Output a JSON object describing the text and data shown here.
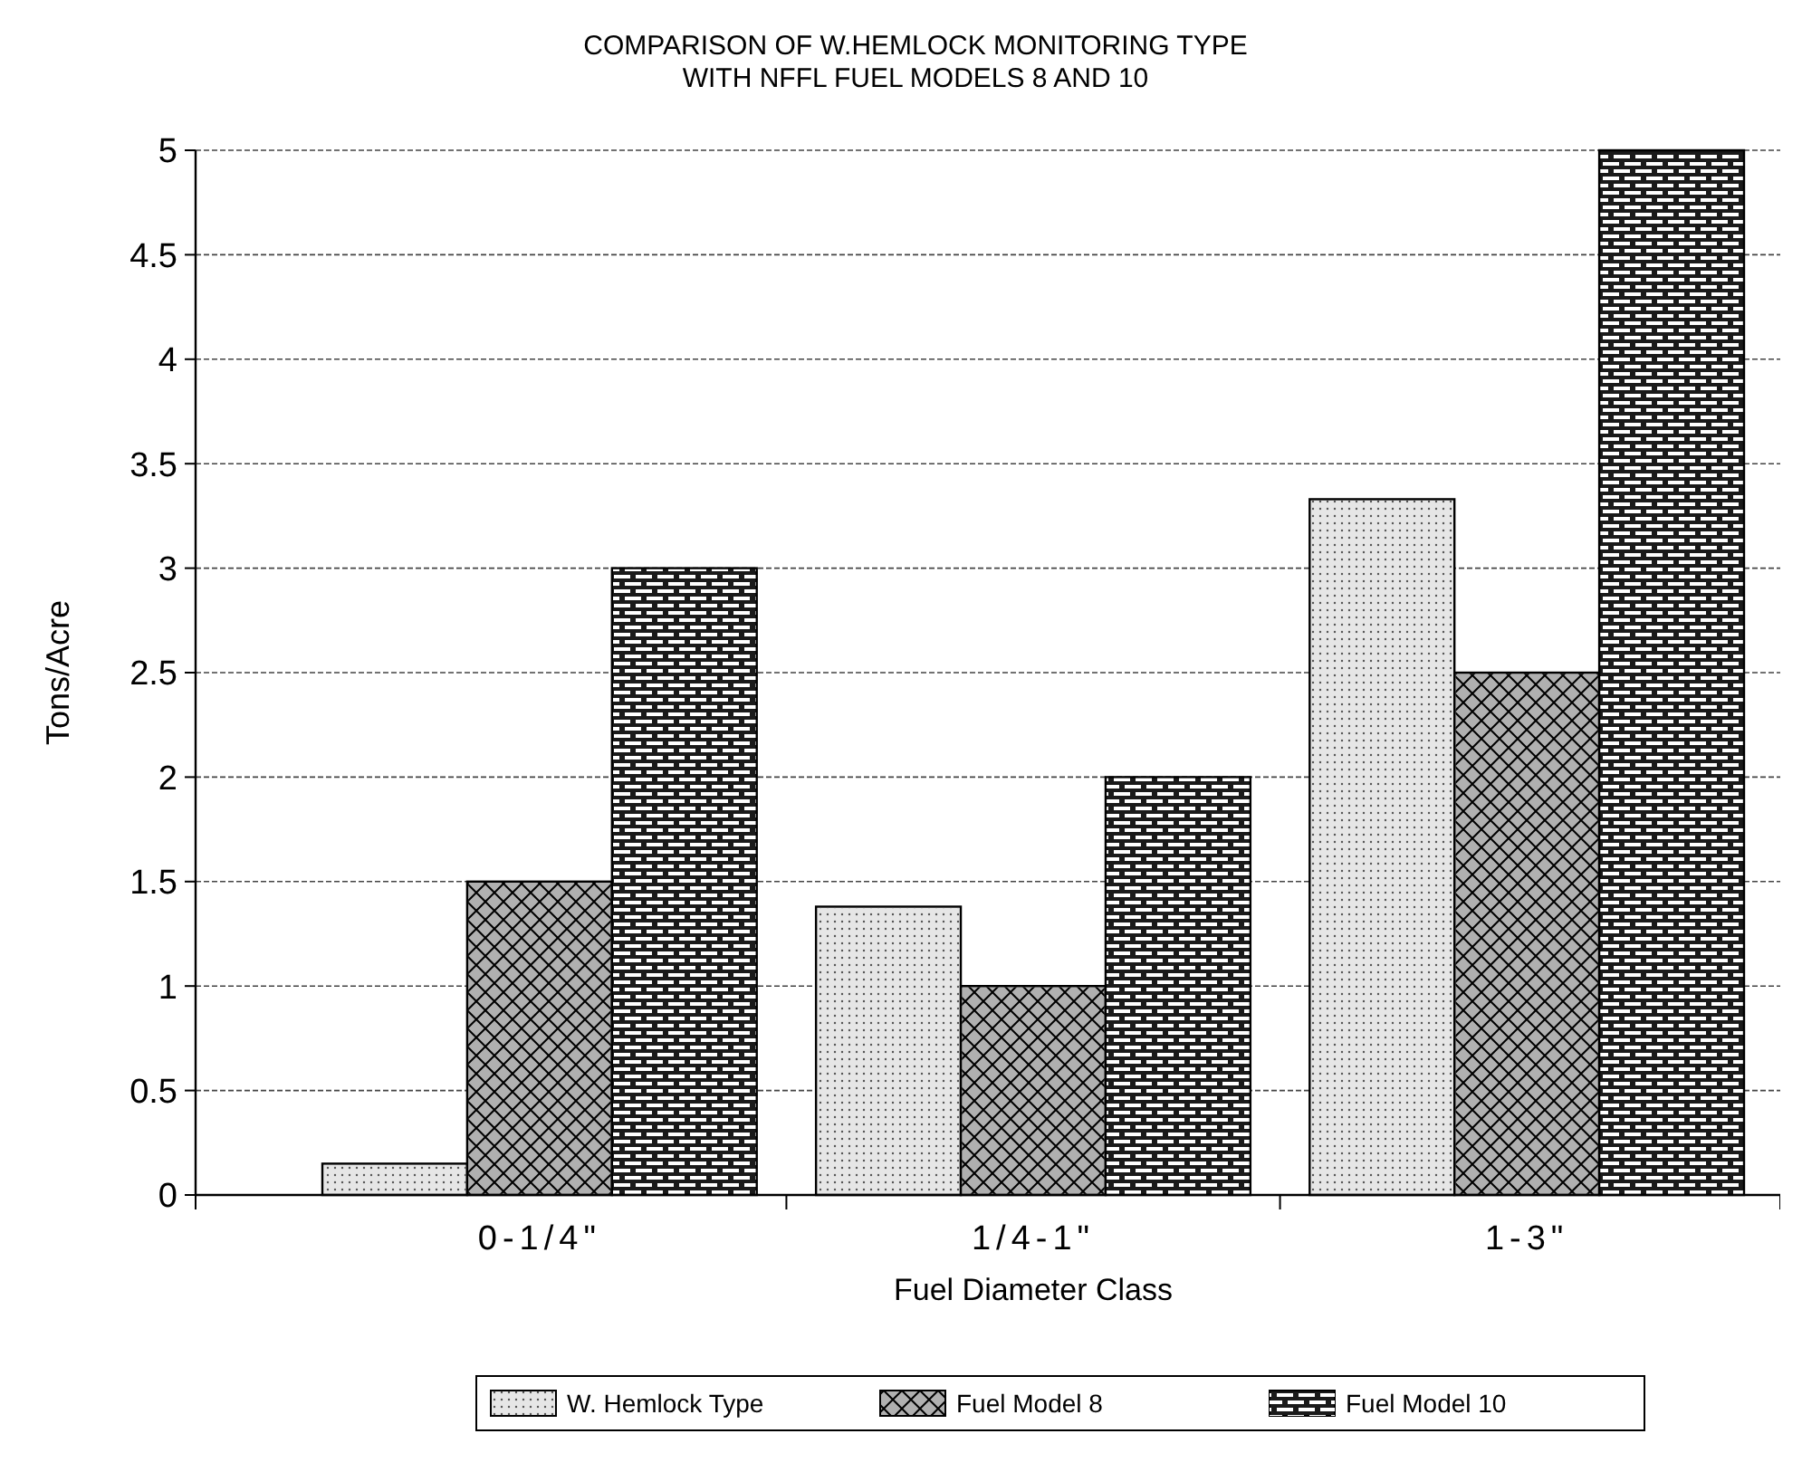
{
  "chart_data": {
    "type": "bar",
    "title": "COMPARISON OF W.HEMLOCK MONITORING TYPE\nWITH NFFL FUEL MODELS 8 AND 10",
    "xlabel": "Fuel Diameter Class",
    "ylabel": "Tons/Acre",
    "categories": [
      "0-1/4\"",
      "1/4-1\"",
      "1-3\""
    ],
    "series": [
      {
        "name": "W. Hemlock Type",
        "color": "#e6e6e6",
        "values": [
          0.15,
          1.38,
          3.33
        ]
      },
      {
        "name": "Fuel Model 8",
        "color": "#b0b0b0",
        "values": [
          1.5,
          1,
          2.5
        ]
      },
      {
        "name": "Fuel Model 10",
        "color": "#1a1a1a",
        "values": [
          3,
          2,
          5
        ]
      }
    ],
    "ylim": [
      0,
      5
    ],
    "yticks": [
      0,
      0.5,
      1,
      1.5,
      2,
      2.5,
      3,
      3.5,
      4,
      4.5,
      5
    ],
    "grid": "y",
    "legend": "bottom"
  }
}
